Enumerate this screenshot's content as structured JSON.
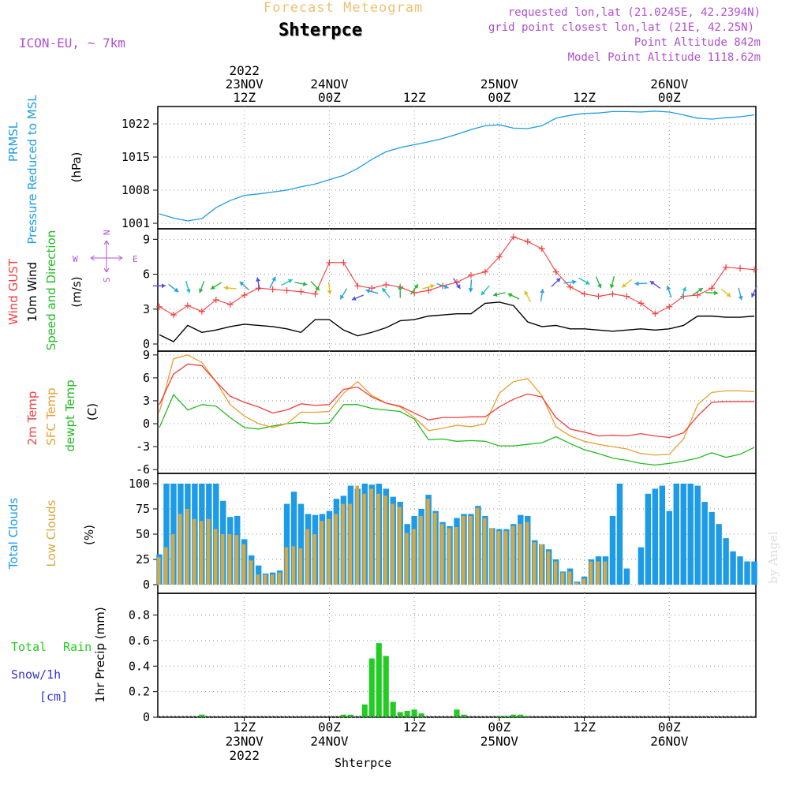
{
  "header": {
    "app_title": "Forecast Meteogram",
    "location": "Shterpce",
    "model": "ICON-EU, ~ 7km",
    "requested": "requested lon,lat (21.0245E, 42.2394N)",
    "grid_point": "grid point closest lon,lat (21E, 42.25N)",
    "point_altitude": "Point Altitude 842m",
    "model_altitude": "Model Point Altitude 1118.62m",
    "footer_location": "Shterpce",
    "watermark": "by Angel"
  },
  "colors": {
    "pressure": "#1e9be6",
    "gust": "#f04040",
    "wind": "#000000",
    "wind_dir": "#22bb22",
    "temp2m": "#f04040",
    "sfc_temp": "#e8a030",
    "dewpt": "#22bb22",
    "total_clouds": "#1e9be6",
    "low_clouds": "#d8a840",
    "rain": "#22cc22",
    "snow": "#3333dd",
    "purple": "#b050d0",
    "orange_title": "#f0c070"
  },
  "time_axis": {
    "top_labels": [
      {
        "h": 12,
        "lines": [
          "2022",
          "23NOV",
          "12Z"
        ]
      },
      {
        "h": 24,
        "lines": [
          "24NOV",
          "00Z"
        ]
      },
      {
        "h": 36,
        "lines": [
          "12Z"
        ]
      },
      {
        "h": 48,
        "lines": [
          "25NOV",
          "00Z"
        ]
      },
      {
        "h": 60,
        "lines": [
          "12Z"
        ]
      },
      {
        "h": 72,
        "lines": [
          "26NOV",
          "00Z"
        ]
      }
    ],
    "bottom_labels": [
      {
        "h": 12,
        "lines": [
          "12Z",
          "23NOV",
          "2022"
        ]
      },
      {
        "h": 24,
        "lines": [
          "00Z",
          "24NOV"
        ]
      },
      {
        "h": 36,
        "lines": [
          "12Z"
        ]
      },
      {
        "h": 48,
        "lines": [
          "00Z",
          "25NOV"
        ]
      },
      {
        "h": 60,
        "lines": [
          "12Z"
        ]
      },
      {
        "h": 72,
        "lines": [
          "00Z",
          "26NOV"
        ]
      }
    ]
  },
  "panels": {
    "pressure": {
      "title1": "PRMSL",
      "title2": "Pressure Reduced to MSL",
      "unit": "(hPa)",
      "ticks": [
        "1001",
        "1008",
        "1015",
        "1022"
      ]
    },
    "wind": {
      "title1": "Wind GUST",
      "title2": "10m Wind",
      "title3": "Speed and Direction",
      "unit": "(m/s)",
      "ticks": [
        "0",
        "3",
        "6",
        "9"
      ],
      "compass_n": "N",
      "compass_s": "S",
      "compass_w": "W",
      "compass_e": "E"
    },
    "temp": {
      "title1": "2m Temp",
      "title2": "SFC Temp",
      "title3": "dewpt Temp",
      "unit": "(C)",
      "ticks": [
        "-6",
        "-3",
        "0",
        "3",
        "6",
        "9"
      ]
    },
    "clouds": {
      "title1": "Total Clouds",
      "title2": "Low Clouds",
      "unit": "(%)",
      "ticks": [
        "0",
        "25",
        "50",
        "75",
        "100"
      ]
    },
    "precip": {
      "title1": "Total",
      "title1b": "Rain",
      "title2": "Snow/1h",
      "title3": "[cm]",
      "unit": "1hr Precip (mm)",
      "ticks": [
        "0",
        "0.2",
        "0.4",
        "0.6",
        "0.8"
      ]
    }
  },
  "chart_data": [
    {
      "type": "line",
      "title": "PRMSL Pressure Reduced to MSL",
      "ylabel": "(hPa)",
      "ylim": [
        1001,
        1025
      ],
      "x": [
        0,
        2,
        4,
        6,
        8,
        10,
        12,
        14,
        16,
        18,
        20,
        22,
        24,
        26,
        28,
        30,
        32,
        34,
        36,
        38,
        40,
        42,
        44,
        46,
        48,
        50,
        52,
        54,
        56,
        58,
        60,
        62,
        64,
        66,
        68,
        70,
        72,
        74,
        76,
        78,
        80,
        82,
        84
      ],
      "series": [
        {
          "name": "PRMSL",
          "values": [
            1003.0,
            1002.1,
            1001.5,
            1002.0,
            1004.3,
            1005.8,
            1006.9,
            1007.2,
            1007.6,
            1008.0,
            1008.7,
            1009.3,
            1010.2,
            1011.1,
            1012.6,
            1014.5,
            1016.1,
            1017.0,
            1017.6,
            1018.2,
            1018.9,
            1019.8,
            1020.8,
            1021.6,
            1021.8,
            1021.1,
            1021.0,
            1021.6,
            1023.2,
            1023.8,
            1024.2,
            1024.3,
            1024.6,
            1024.6,
            1024.5,
            1024.7,
            1024.5,
            1023.9,
            1023.2,
            1023.0,
            1023.3,
            1023.5,
            1023.9
          ]
        }
      ]
    },
    {
      "type": "line",
      "title": "Wind GUST / 10m Wind Speed and Direction",
      "ylabel": "(m/s)",
      "ylim": [
        0,
        9.7
      ],
      "x": [
        0,
        2,
        4,
        6,
        8,
        10,
        12,
        14,
        16,
        18,
        20,
        22,
        24,
        26,
        28,
        30,
        32,
        34,
        36,
        38,
        40,
        42,
        44,
        46,
        48,
        50,
        52,
        54,
        56,
        58,
        60,
        62,
        64,
        66,
        68,
        70,
        72,
        74,
        76,
        78,
        80,
        82,
        84
      ],
      "series": [
        {
          "name": "Wind GUST",
          "values": [
            3.2,
            2.5,
            3.3,
            2.8,
            3.8,
            3.4,
            4.2,
            4.8,
            4.7,
            4.6,
            4.5,
            4.3,
            7.0,
            7.0,
            5.0,
            4.8,
            5.1,
            4.9,
            4.4,
            4.6,
            5.0,
            5.3,
            5.9,
            6.2,
            7.5,
            9.2,
            8.8,
            8.2,
            6.2,
            4.9,
            4.3,
            4.1,
            4.3,
            4.1,
            3.5,
            2.6,
            3.2,
            4.1,
            4.2,
            4.8,
            6.6,
            6.5,
            6.4
          ]
        },
        {
          "name": "10m Wind",
          "values": [
            0.8,
            0.2,
            1.6,
            1.0,
            1.2,
            1.5,
            1.7,
            1.6,
            1.5,
            1.3,
            1.0,
            2.1,
            2.1,
            1.2,
            0.7,
            1.0,
            1.4,
            2.0,
            2.1,
            2.4,
            2.5,
            2.6,
            2.6,
            3.5,
            3.6,
            3.3,
            1.9,
            1.5,
            1.6,
            1.3,
            1.3,
            1.2,
            1.1,
            1.2,
            1.3,
            1.2,
            1.3,
            1.6,
            2.4,
            2.4,
            2.3,
            2.3,
            2.4
          ]
        },
        {
          "name": "Wind Direction Arrows",
          "values": [
            5.0,
            4.8,
            4.9,
            4.9,
            5.0,
            4.8,
            5.0,
            5.2,
            5.3,
            5.3,
            5.2,
            5.0,
            4.8,
            4.3,
            4.0,
            4.5,
            4.4,
            4.5,
            4.7,
            4.9,
            5.0,
            5.2,
            5.0,
            4.6,
            4.3,
            4.1,
            4.1,
            4.2,
            5.3,
            5.3,
            5.4,
            5.3,
            5.3,
            5.2,
            5.2,
            5.1,
            4.5,
            4.4,
            4.5,
            4.4,
            4.4,
            4.3,
            4.5
          ]
        }
      ]
    },
    {
      "type": "line",
      "title": "2m Temp / SFC Temp / dewpt Temp",
      "ylabel": "(C)",
      "ylim": [
        -6.5,
        9.5
      ],
      "x": [
        0,
        2,
        4,
        6,
        8,
        10,
        12,
        14,
        16,
        18,
        20,
        22,
        24,
        26,
        28,
        30,
        32,
        34,
        36,
        38,
        40,
        42,
        44,
        46,
        48,
        50,
        52,
        54,
        56,
        58,
        60,
        62,
        64,
        66,
        68,
        70,
        72,
        74,
        76,
        78,
        80,
        82,
        84
      ],
      "series": [
        {
          "name": "2m Temp",
          "values": [
            2.5,
            6.5,
            7.8,
            7.6,
            5.5,
            3.6,
            2.8,
            2.2,
            1.4,
            1.8,
            2.6,
            2.4,
            2.5,
            4.5,
            4.8,
            3.5,
            2.7,
            2.3,
            1.4,
            0.5,
            0.8,
            0.8,
            0.9,
            0.9,
            2.2,
            3.2,
            3.9,
            3.5,
            0.8,
            -0.7,
            -1.1,
            -1.6,
            -1.5,
            -1.6,
            -1.3,
            -1.6,
            -1.8,
            -1.2,
            1.0,
            2.8,
            2.9,
            2.9,
            2.9
          ]
        },
        {
          "name": "SFC Temp",
          "values": [
            1.5,
            8.5,
            9.0,
            8.0,
            5.5,
            2.5,
            1.0,
            0.0,
            -0.5,
            0.0,
            1.5,
            1.5,
            1.6,
            4.0,
            5.5,
            3.7,
            2.7,
            2.2,
            0.8,
            -0.9,
            -0.6,
            -0.2,
            -0.4,
            0.0,
            4.0,
            5.5,
            5.9,
            3.7,
            -0.4,
            -1.6,
            -2.3,
            -2.7,
            -3.0,
            -3.3,
            -3.9,
            -4.1,
            -4.0,
            -2.0,
            2.5,
            4.1,
            4.3,
            4.3,
            4.2
          ]
        },
        {
          "name": "dewpt Temp",
          "values": [
            -0.5,
            3.8,
            1.8,
            2.5,
            2.3,
            0.8,
            -0.5,
            -0.7,
            -0.3,
            0.0,
            0.2,
            0.0,
            0.1,
            2.5,
            2.5,
            2.0,
            1.8,
            1.6,
            0.6,
            -2.1,
            -2.0,
            -2.3,
            -2.2,
            -2.3,
            -2.9,
            -2.9,
            -2.7,
            -2.5,
            -1.7,
            -2.6,
            -3.4,
            -3.9,
            -4.5,
            -4.8,
            -5.2,
            -5.4,
            -5.2,
            -4.9,
            -4.5,
            -3.8,
            -4.4,
            -4.0,
            -3.1
          ]
        }
      ]
    },
    {
      "type": "bar",
      "title": "Total Clouds / Low Clouds",
      "ylabel": "(%)",
      "ylim": [
        0,
        100
      ],
      "x": [
        0,
        1,
        2,
        3,
        4,
        5,
        6,
        7,
        8,
        9,
        10,
        11,
        12,
        13,
        14,
        15,
        16,
        17,
        18,
        19,
        20,
        21,
        22,
        23,
        24,
        25,
        26,
        27,
        28,
        29,
        30,
        31,
        32,
        33,
        34,
        35,
        36,
        37,
        38,
        39,
        40,
        41,
        42,
        43,
        44,
        45,
        46,
        47,
        48,
        49,
        50,
        51,
        52,
        53,
        54,
        55,
        56,
        57,
        58,
        59,
        60,
        61,
        62,
        63,
        64,
        65,
        66,
        67,
        68,
        69,
        70,
        71,
        72,
        73,
        74,
        75,
        76,
        77,
        78,
        79,
        80,
        81,
        82,
        83,
        84
      ],
      "series": [
        {
          "name": "Total Clouds",
          "values": [
            30,
            100,
            100,
            100,
            100,
            100,
            100,
            100,
            100,
            83,
            67,
            68,
            45,
            29,
            19,
            11,
            12,
            14,
            80,
            92,
            80,
            70,
            69,
            70,
            73,
            85,
            88,
            98,
            95,
            100,
            99,
            100,
            95,
            87,
            82,
            60,
            68,
            75,
            89,
            73,
            62,
            58,
            66,
            70,
            70,
            78,
            68,
            56,
            55,
            55,
            60,
            69,
            68,
            44,
            40,
            35,
            25,
            13,
            16,
            3,
            8,
            25,
            28,
            28,
            68,
            100,
            16,
            0,
            37,
            90,
            95,
            98,
            73,
            100,
            100,
            100,
            98,
            82,
            72,
            60,
            46,
            33,
            28,
            23,
            23
          ]
        },
        {
          "name": "Low Clouds",
          "values": [
            27,
            37,
            50,
            70,
            75,
            65,
            63,
            65,
            55,
            50,
            50,
            49,
            40,
            24,
            10,
            10,
            10,
            12,
            37,
            38,
            36,
            55,
            50,
            63,
            65,
            70,
            80,
            80,
            98,
            90,
            95,
            90,
            88,
            80,
            77,
            51,
            55,
            68,
            85,
            71,
            60,
            56,
            57,
            68,
            68,
            76,
            66,
            56,
            53,
            53,
            58,
            60,
            62,
            42,
            40,
            33,
            23,
            12,
            13,
            2,
            6,
            23,
            23,
            23,
            0,
            0,
            0,
            0,
            0,
            0,
            0,
            0,
            0,
            0,
            0,
            0,
            0,
            0,
            0,
            0,
            0,
            0,
            0,
            0,
            0
          ]
        }
      ]
    },
    {
      "type": "bar",
      "title": "1hr Precip",
      "ylabel": "1hr Precip (mm)",
      "ylim": [
        0,
        0.97
      ],
      "x": [
        0,
        1,
        2,
        3,
        4,
        5,
        6,
        7,
        8,
        9,
        10,
        11,
        12,
        13,
        14,
        15,
        16,
        17,
        18,
        19,
        20,
        21,
        22,
        23,
        24,
        25,
        26,
        27,
        28,
        29,
        30,
        31,
        32,
        33,
        34,
        35,
        36,
        37,
        38,
        39,
        40,
        41,
        42,
        43,
        44,
        45,
        46,
        47,
        48,
        49,
        50,
        51,
        52,
        53,
        54,
        55,
        56,
        57,
        58,
        59,
        60,
        61,
        62,
        63,
        64,
        65,
        66,
        67,
        68,
        69,
        70,
        71,
        72,
        73,
        74,
        75,
        76,
        77,
        78,
        79,
        80,
        81,
        82,
        83,
        84
      ],
      "series": [
        {
          "name": "Total Rain",
          "values": [
            0,
            0,
            0,
            0,
            0,
            0,
            0.02,
            0,
            0,
            0,
            0,
            0,
            0,
            0,
            0,
            0,
            0,
            0,
            0,
            0,
            0,
            0,
            0,
            0,
            0,
            0,
            0.02,
            0.02,
            0,
            0.1,
            0.46,
            0.58,
            0.48,
            0.12,
            0.04,
            0.05,
            0.06,
            0.03,
            0,
            0,
            0,
            0,
            0.06,
            0.02,
            0,
            0,
            0,
            0,
            0.01,
            0.01,
            0.02,
            0.02,
            0.01,
            0,
            0,
            0,
            0,
            0,
            0,
            0,
            0,
            0,
            0,
            0,
            0,
            0,
            0,
            0,
            0,
            0,
            0,
            0,
            0,
            0,
            0,
            0,
            0,
            0,
            0,
            0,
            0,
            0,
            0,
            0,
            0
          ]
        },
        {
          "name": "Snow/1h",
          "values": [
            0,
            0,
            0,
            0,
            0,
            0,
            0,
            0,
            0,
            0,
            0,
            0,
            0,
            0,
            0,
            0,
            0,
            0,
            0,
            0,
            0,
            0,
            0,
            0,
            0,
            0,
            0,
            0,
            0,
            0,
            0,
            0,
            0,
            0,
            0,
            0,
            0,
            0,
            0,
            0,
            0,
            0,
            0,
            0,
            0,
            0,
            0,
            0,
            0,
            0,
            0,
            0,
            0,
            0,
            0,
            0,
            0,
            0,
            0,
            0,
            0,
            0,
            0,
            0,
            0,
            0,
            0,
            0,
            0,
            0,
            0,
            0,
            0,
            0,
            0,
            0,
            0,
            0,
            0,
            0,
            0,
            0,
            0,
            0,
            0
          ]
        }
      ]
    }
  ]
}
